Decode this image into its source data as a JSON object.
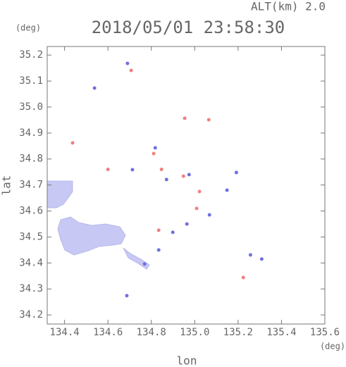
{
  "chart_data": {
    "type": "scatter",
    "title": "2018/05/01 23:58:30",
    "altitude_label": "ALT(km) 2.0",
    "y_unit": "(deg)",
    "x_unit": "(deg)",
    "x_label": "lon",
    "y_label": "lat",
    "xlim": [
      134.32,
      135.6
    ],
    "ylim": [
      34.165,
      35.233
    ],
    "xticks": [
      134.4,
      134.6,
      134.8,
      {
        "value": 135,
        "label": "135.0"
      },
      135.2,
      135.4,
      135.6
    ],
    "yticks": [
      34.2,
      34.3,
      34.4,
      34.5,
      34.6,
      34.7,
      34.8,
      34.9,
      {
        "value": 35,
        "label": "35.0"
      },
      35.1,
      35.2
    ],
    "series": [
      {
        "color": "#f08080",
        "x": [
          134.707,
          134.6,
          134.847,
          134.954,
          135.065,
          134.437,
          135.022,
          135.009,
          135.224,
          134.834,
          134.811,
          134.948
        ],
        "values": [
          35.141,
          34.76,
          34.76,
          34.957,
          34.951,
          34.862,
          34.675,
          34.61,
          34.344,
          34.526,
          34.821,
          34.734
        ]
      },
      {
        "color": "#7070e0",
        "x": [
          135.309,
          134.69,
          134.538,
          134.713,
          134.818,
          134.87,
          134.974,
          135.068,
          134.964,
          134.899,
          134.769,
          134.687,
          135.257,
          135.149,
          135.192,
          134.834
        ],
        "values": [
          34.415,
          35.168,
          35.073,
          34.759,
          34.843,
          34.721,
          34.74,
          34.585,
          34.55,
          34.518,
          34.396,
          34.274,
          34.431,
          34.68,
          34.748,
          34.45
        ]
      }
    ]
  }
}
